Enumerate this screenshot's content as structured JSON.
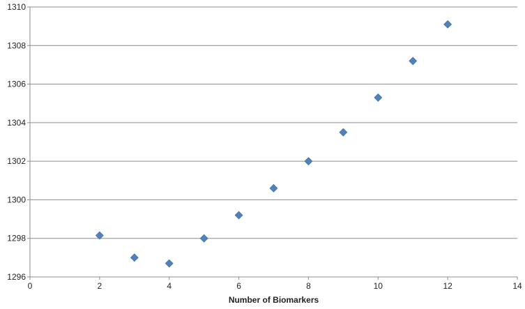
{
  "chart_data": {
    "type": "scatter",
    "title": "",
    "xlabel": "Number of Biomarkers",
    "ylabel": "",
    "xlim": [
      0,
      14
    ],
    "ylim": [
      1296,
      1310
    ],
    "xticks": [
      "0",
      "2",
      "4",
      "6",
      "8",
      "10",
      "12",
      "14"
    ],
    "yticks": [
      "1296",
      "1298",
      "1300",
      "1302",
      "1304",
      "1306",
      "1308",
      "1310"
    ],
    "grid": "horizontal",
    "legend": "none",
    "series": [
      {
        "x": [
          2,
          3,
          4,
          5,
          6,
          7,
          8,
          9,
          10,
          11,
          12
        ],
        "y": [
          1298.15,
          1297.0,
          1296.7,
          1298.0,
          1299.2,
          1300.6,
          1302.0,
          1303.5,
          1305.3,
          1307.2,
          1309.1
        ]
      }
    ],
    "colors": {
      "marker": "#4F81BD",
      "grid": "#8C8C8C",
      "axis": "#8C8C8C",
      "text": "#222222"
    }
  }
}
